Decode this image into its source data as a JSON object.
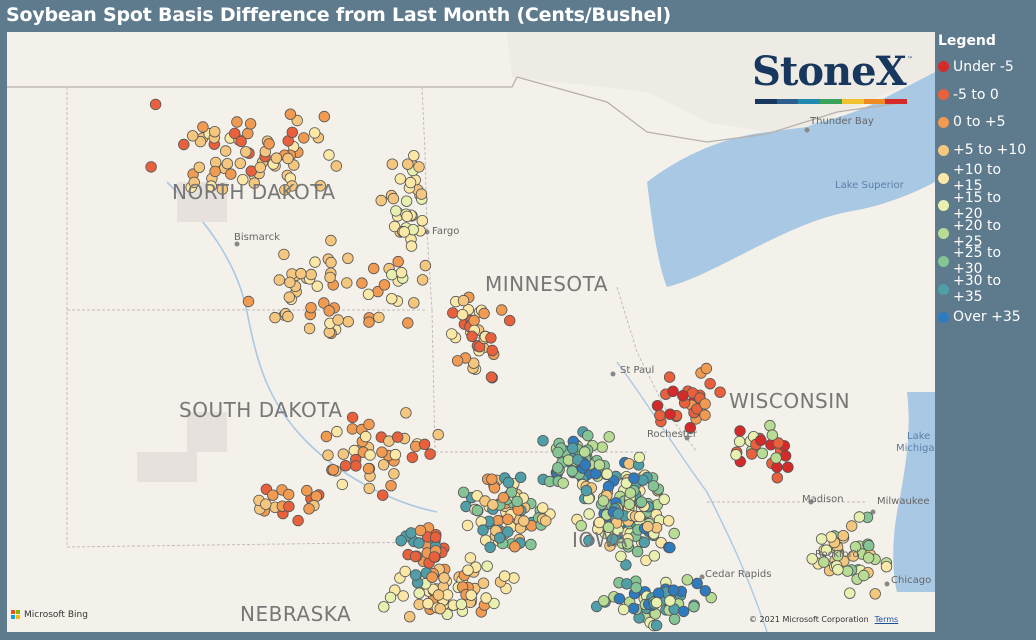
{
  "title": "Soybean Spot Basis Difference from Last Month (Cents/Bushel)",
  "legend": {
    "title": "Legend",
    "items": [
      {
        "label": "Under -5",
        "color": "#d42a2a"
      },
      {
        "label": "-5 to 0",
        "color": "#e8603c"
      },
      {
        "label": "0 to +5",
        "color": "#f09a52"
      },
      {
        "label": "+5 to +10",
        "color": "#f5c77e"
      },
      {
        "label": "+10 to +15",
        "color": "#fbe7a6"
      },
      {
        "label": "+15 to +20",
        "color": "#e8f0b0"
      },
      {
        "label": "+20 to +25",
        "color": "#b8dc94"
      },
      {
        "label": "+25 to +30",
        "color": "#84c495"
      },
      {
        "label": "+30 to +35",
        "color": "#4f9ea8"
      },
      {
        "label": "Over +35",
        "color": "#2f7bbf"
      }
    ]
  },
  "logo": {
    "text": "StoneX",
    "tm": "™",
    "bar_colors": [
      "#17375e",
      "#2e5e8e",
      "#1f8bb0",
      "#3aa35a",
      "#f2c230",
      "#f08a24",
      "#d42a2a"
    ]
  },
  "states": [
    {
      "label": "NORTH DAKOTA"
    },
    {
      "label": "MINNESOTA"
    },
    {
      "label": "SOUTH DAKOTA"
    },
    {
      "label": "WISCONSIN"
    },
    {
      "label": "NEBRASKA"
    },
    {
      "label": "IOWA"
    }
  ],
  "cities": [
    {
      "label": "Thunder Bay"
    },
    {
      "label": "Bismarck"
    },
    {
      "label": "Fargo"
    },
    {
      "label": "St Paul"
    },
    {
      "label": "Rochester"
    },
    {
      "label": "Madison"
    },
    {
      "label": "Milwaukee"
    },
    {
      "label": "Rockford"
    },
    {
      "label": "Chicago"
    },
    {
      "label": "Cedar Rapids"
    }
  ],
  "water": [
    {
      "label": "Lake Superior"
    },
    {
      "label": "Lake"
    },
    {
      "label": "Michigan"
    }
  ],
  "attribution": {
    "bing": "Microsoft Bing",
    "copyright": "© 2021 Microsoft Corporation",
    "terms": "Terms"
  }
}
